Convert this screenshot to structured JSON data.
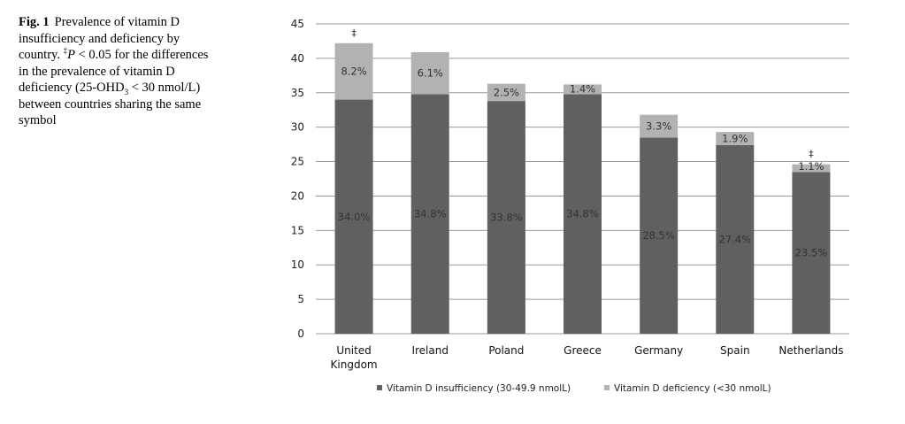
{
  "caption": {
    "fig_label": "Fig. 1",
    "text_1": "Prevalence of vitamin D insufficiency and deficiency by country.",
    "dagger": "‡",
    "p_letter": "P",
    "text_2": " < 0.05 for the differences in the prevalence of vitamin D deficiency (25-OHD",
    "subscript": "3",
    "text_3": " < 30 nmol/L) between countries sharing the same symbol"
  },
  "chart_data": {
    "type": "bar",
    "stacked": true,
    "categories": [
      "United\nKingdom",
      "Ireland",
      "Poland",
      "Greece",
      "Germany",
      "Spain",
      "Netherlands"
    ],
    "series": [
      {
        "name": "Vitamin D insufficiency (30-49.9 nmolL)",
        "color": "#606060",
        "values": [
          34.0,
          34.8,
          33.8,
          34.8,
          28.5,
          27.4,
          23.5
        ],
        "labels": [
          "34.0%",
          "34.8%",
          "33.8%",
          "34.8%",
          "28.5%",
          "27.4%",
          "23.5%"
        ]
      },
      {
        "name": "Vitamin D deficiency (<30 nmolL)",
        "color": "#b2b2b2",
        "values": [
          8.2,
          6.1,
          2.5,
          1.4,
          3.3,
          1.9,
          1.1
        ],
        "labels": [
          "8.2%",
          "6.1%",
          "2.5%",
          "1.4%",
          "3.3%",
          "1.9%",
          "1.1%"
        ]
      }
    ],
    "ylim": [
      0,
      45
    ],
    "yticks": [
      0,
      5,
      10,
      15,
      20,
      25,
      30,
      35,
      40,
      45
    ],
    "grid": true,
    "legend": "bottom",
    "annotations": [
      {
        "category_index": 0,
        "text": "‡"
      },
      {
        "category_index": 6,
        "text": "‡"
      }
    ],
    "title": "",
    "xlabel": "",
    "ylabel": ""
  }
}
